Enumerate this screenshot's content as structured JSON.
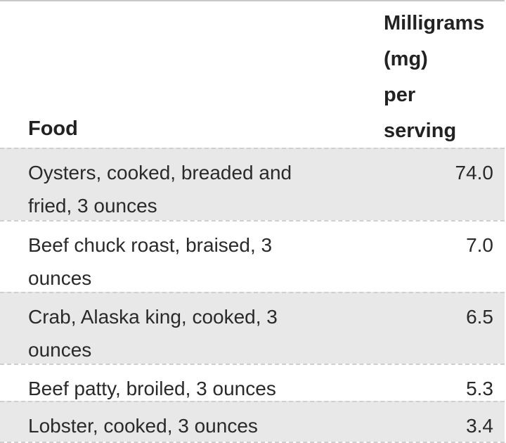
{
  "table": {
    "headers": {
      "food": "Food",
      "mg_line1": "Milligrams",
      "mg_line2": "(mg)",
      "mg_line3": "per",
      "mg_line4": "serving"
    },
    "rows": [
      {
        "food": "Oysters, cooked, breaded and fried, 3 ounces",
        "mg": "74.0"
      },
      {
        "food": "Beef chuck roast, braised, 3 ounces",
        "mg": "7.0"
      },
      {
        "food": "Crab, Alaska king, cooked, 3 ounces",
        "mg": "6.5"
      },
      {
        "food": "Beef patty, broiled, 3 ounces",
        "mg": "5.3"
      },
      {
        "food": "Lobster, cooked, 3 ounces",
        "mg": "3.4"
      }
    ]
  }
}
